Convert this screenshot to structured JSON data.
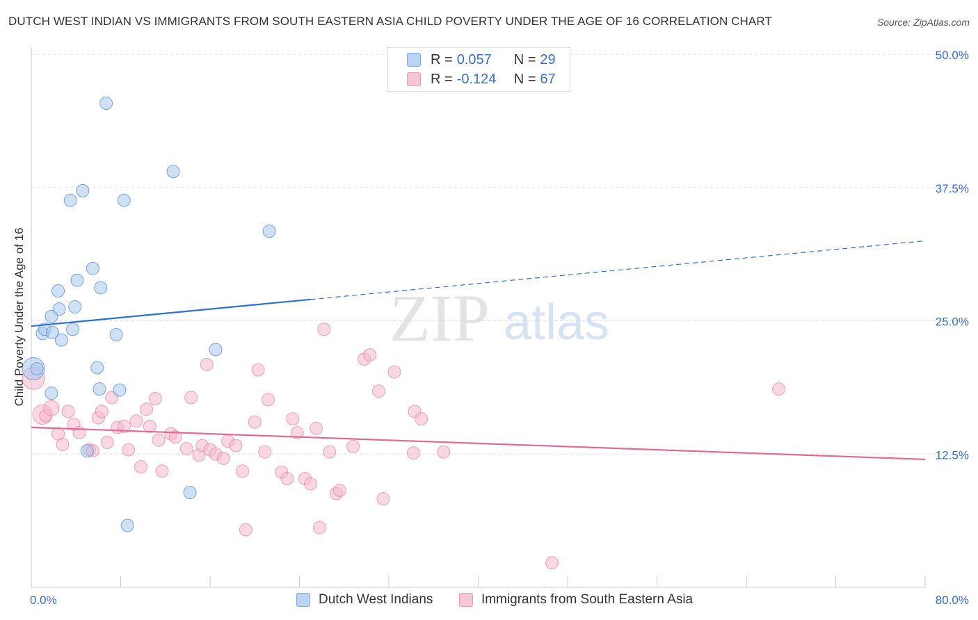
{
  "title": "DUTCH WEST INDIAN VS IMMIGRANTS FROM SOUTH EASTERN ASIA CHILD POVERTY UNDER THE AGE OF 16 CORRELATION CHART",
  "source": "Source: ZipAtlas.com",
  "watermark": {
    "zip": "ZIP",
    "atlas": "atlas"
  },
  "colors": {
    "blue_fill": "#a9c8ef",
    "blue_stroke": "#5b8fd6",
    "blue_line": "#2f6fcf",
    "pink_fill": "#f6b8cc",
    "pink_stroke": "#e07fa0",
    "pink_line": "#e06a95",
    "axis_text": "#3a6fc4"
  },
  "legend": {
    "rows": [
      {
        "r_label": "R =",
        "r_value": "0.057",
        "n_label": "N =",
        "n_value": "29"
      },
      {
        "r_label": "R =",
        "r_value": "-0.124",
        "n_label": "N =",
        "n_value": "67"
      }
    ]
  },
  "bottom_legend": {
    "series1": "Dutch West Indians",
    "series2": "Immigrants from South Eastern Asia"
  },
  "chart_data": {
    "type": "scatter",
    "title": "DUTCH WEST INDIAN VS IMMIGRANTS FROM SOUTH EASTERN ASIA CHILD POVERTY UNDER THE AGE OF 16 CORRELATION CHART",
    "xlabel": "",
    "ylabel": "Child Poverty Under the Age of 16",
    "xlim": [
      0,
      80
    ],
    "ylim": [
      0,
      50
    ],
    "x_tick_labels": [
      "0.0%",
      "80.0%"
    ],
    "y_tick_labels": [
      "12.5%",
      "25.0%",
      "37.5%",
      "50.0%"
    ],
    "y_ticks": [
      12.5,
      25.0,
      37.5,
      50.0
    ],
    "grid": true,
    "series": [
      {
        "name": "Dutch West Indians",
        "r": 0.057,
        "n": 29,
        "trend": {
          "x_start": 0,
          "y_start": 24.5,
          "x_solid_end": 25,
          "y_solid_end": 27.0,
          "x_end": 80,
          "y_end": 32.5
        },
        "points": [
          [
            0.2,
            20.5,
            16
          ],
          [
            1.0,
            23.8,
            9
          ],
          [
            1.2,
            24.2,
            9
          ],
          [
            1.8,
            25.4,
            9
          ],
          [
            1.8,
            18.2,
            9
          ],
          [
            1.9,
            23.9,
            9
          ],
          [
            2.4,
            27.8,
            9
          ],
          [
            2.5,
            26.1,
            9
          ],
          [
            2.7,
            23.2,
            9
          ],
          [
            3.5,
            36.3,
            9
          ],
          [
            3.7,
            24.2,
            9
          ],
          [
            3.9,
            26.3,
            9
          ],
          [
            4.1,
            28.8,
            9
          ],
          [
            4.6,
            37.2,
            9
          ],
          [
            5.0,
            12.8,
            9
          ],
          [
            5.5,
            29.9,
            9
          ],
          [
            5.9,
            20.6,
            9
          ],
          [
            6.1,
            18.6,
            9
          ],
          [
            6.2,
            28.1,
            9
          ],
          [
            6.7,
            45.4,
            9
          ],
          [
            7.6,
            23.7,
            9
          ],
          [
            7.9,
            18.5,
            9
          ],
          [
            8.3,
            36.3,
            9
          ],
          [
            8.6,
            5.8,
            9
          ],
          [
            12.7,
            39.0,
            9
          ],
          [
            14.2,
            8.9,
            9
          ],
          [
            16.5,
            22.3,
            9
          ],
          [
            21.3,
            33.4,
            9
          ],
          [
            0.5,
            20.5,
            9
          ]
        ]
      },
      {
        "name": "Immigrants from South Eastern Asia",
        "r": -0.124,
        "n": 67,
        "trend": {
          "x_start": 0,
          "y_start": 15.0,
          "x_end": 80,
          "y_end": 12.0
        },
        "points": [
          [
            0.2,
            19.6,
            16
          ],
          [
            1.0,
            16.2,
            14
          ],
          [
            1.3,
            16.1,
            9
          ],
          [
            1.8,
            16.8,
            11
          ],
          [
            2.4,
            14.4,
            9
          ],
          [
            2.8,
            13.4,
            9
          ],
          [
            3.3,
            16.5,
            9
          ],
          [
            3.8,
            15.3,
            9
          ],
          [
            4.3,
            14.5,
            9
          ],
          [
            5.2,
            12.9,
            9
          ],
          [
            5.5,
            12.8,
            9
          ],
          [
            6.0,
            15.9,
            9
          ],
          [
            6.3,
            16.5,
            9
          ],
          [
            6.8,
            13.6,
            9
          ],
          [
            7.2,
            17.8,
            9
          ],
          [
            7.7,
            15.0,
            9
          ],
          [
            8.3,
            15.1,
            9
          ],
          [
            8.7,
            12.9,
            9
          ],
          [
            9.4,
            15.6,
            9
          ],
          [
            9.8,
            11.3,
            9
          ],
          [
            10.3,
            16.7,
            9
          ],
          [
            10.6,
            15.1,
            9
          ],
          [
            11.1,
            17.7,
            9
          ],
          [
            11.4,
            13.8,
            9
          ],
          [
            11.7,
            10.9,
            9
          ],
          [
            12.5,
            14.4,
            9
          ],
          [
            12.9,
            14.1,
            9
          ],
          [
            13.9,
            13.0,
            9
          ],
          [
            14.3,
            17.8,
            9
          ],
          [
            15.0,
            12.4,
            9
          ],
          [
            15.3,
            13.3,
            9
          ],
          [
            15.7,
            20.9,
            9
          ],
          [
            16.0,
            12.9,
            9
          ],
          [
            16.5,
            12.5,
            9
          ],
          [
            17.2,
            12.1,
            9
          ],
          [
            17.6,
            13.7,
            9
          ],
          [
            18.3,
            13.3,
            9
          ],
          [
            18.9,
            10.9,
            9
          ],
          [
            19.2,
            5.4,
            9
          ],
          [
            20.0,
            15.5,
            9
          ],
          [
            20.3,
            20.4,
            9
          ],
          [
            20.9,
            12.7,
            9
          ],
          [
            21.2,
            17.6,
            9
          ],
          [
            22.4,
            10.8,
            9
          ],
          [
            22.9,
            10.2,
            9
          ],
          [
            23.4,
            15.8,
            9
          ],
          [
            23.8,
            14.5,
            9
          ],
          [
            24.5,
            10.2,
            9
          ],
          [
            25.0,
            9.7,
            9
          ],
          [
            25.5,
            14.9,
            9
          ],
          [
            25.8,
            5.6,
            9
          ],
          [
            26.2,
            24.2,
            9
          ],
          [
            26.7,
            12.7,
            9
          ],
          [
            27.3,
            8.8,
            9
          ],
          [
            27.6,
            9.1,
            9
          ],
          [
            28.8,
            13.2,
            9
          ],
          [
            29.8,
            21.4,
            9
          ],
          [
            30.3,
            21.8,
            9
          ],
          [
            31.1,
            18.4,
            9
          ],
          [
            31.5,
            8.3,
            9
          ],
          [
            32.5,
            20.2,
            9
          ],
          [
            34.2,
            12.6,
            9
          ],
          [
            34.3,
            16.5,
            9
          ],
          [
            34.9,
            15.8,
            9
          ],
          [
            36.9,
            12.7,
            9
          ],
          [
            46.6,
            2.3,
            9
          ],
          [
            66.9,
            18.6,
            9
          ]
        ]
      }
    ]
  }
}
